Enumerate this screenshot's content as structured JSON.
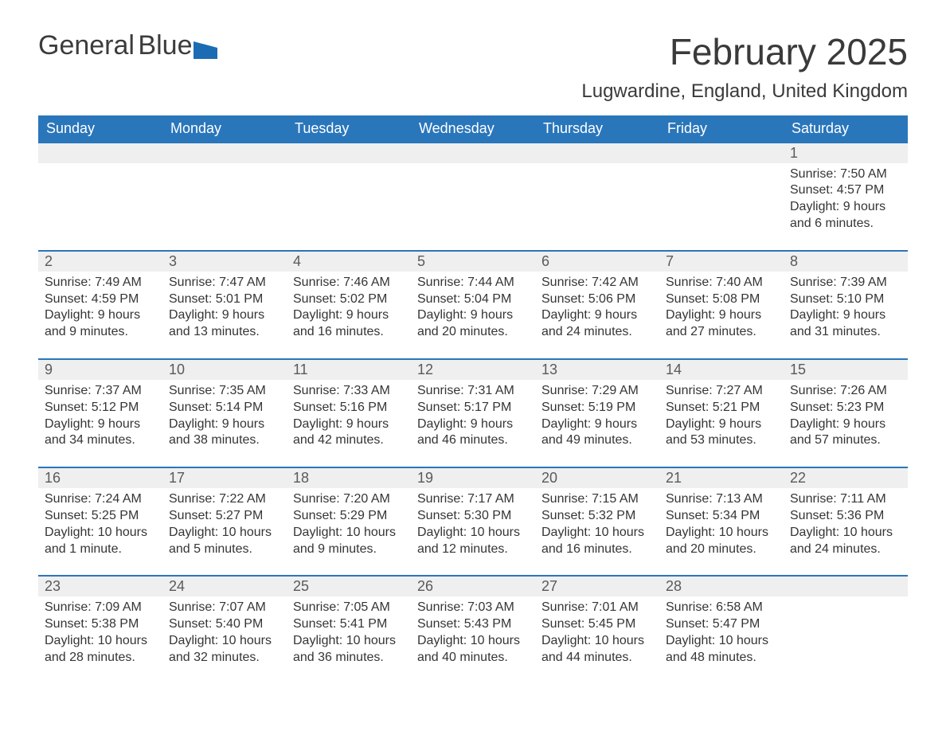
{
  "logo": {
    "word1": "General",
    "word2": "Blue",
    "brand_color": "#1b6cb3"
  },
  "header": {
    "month_title": "February 2025",
    "location": "Lugwardine, England, United Kingdom"
  },
  "calendar": {
    "day_labels": [
      "Sunday",
      "Monday",
      "Tuesday",
      "Wednesday",
      "Thursday",
      "Friday",
      "Saturday"
    ],
    "header_bg": "#2a76bb",
    "header_fg": "#ffffff",
    "daynum_bg": "#efefef",
    "row_divider": "#2a76bb",
    "weeks": [
      [
        null,
        null,
        null,
        null,
        null,
        null,
        {
          "n": "1",
          "sunrise": "Sunrise: 7:50 AM",
          "sunset": "Sunset: 4:57 PM",
          "daylight1": "Daylight: 9 hours",
          "daylight2": "and 6 minutes."
        }
      ],
      [
        {
          "n": "2",
          "sunrise": "Sunrise: 7:49 AM",
          "sunset": "Sunset: 4:59 PM",
          "daylight1": "Daylight: 9 hours",
          "daylight2": "and 9 minutes."
        },
        {
          "n": "3",
          "sunrise": "Sunrise: 7:47 AM",
          "sunset": "Sunset: 5:01 PM",
          "daylight1": "Daylight: 9 hours",
          "daylight2": "and 13 minutes."
        },
        {
          "n": "4",
          "sunrise": "Sunrise: 7:46 AM",
          "sunset": "Sunset: 5:02 PM",
          "daylight1": "Daylight: 9 hours",
          "daylight2": "and 16 minutes."
        },
        {
          "n": "5",
          "sunrise": "Sunrise: 7:44 AM",
          "sunset": "Sunset: 5:04 PM",
          "daylight1": "Daylight: 9 hours",
          "daylight2": "and 20 minutes."
        },
        {
          "n": "6",
          "sunrise": "Sunrise: 7:42 AM",
          "sunset": "Sunset: 5:06 PM",
          "daylight1": "Daylight: 9 hours",
          "daylight2": "and 24 minutes."
        },
        {
          "n": "7",
          "sunrise": "Sunrise: 7:40 AM",
          "sunset": "Sunset: 5:08 PM",
          "daylight1": "Daylight: 9 hours",
          "daylight2": "and 27 minutes."
        },
        {
          "n": "8",
          "sunrise": "Sunrise: 7:39 AM",
          "sunset": "Sunset: 5:10 PM",
          "daylight1": "Daylight: 9 hours",
          "daylight2": "and 31 minutes."
        }
      ],
      [
        {
          "n": "9",
          "sunrise": "Sunrise: 7:37 AM",
          "sunset": "Sunset: 5:12 PM",
          "daylight1": "Daylight: 9 hours",
          "daylight2": "and 34 minutes."
        },
        {
          "n": "10",
          "sunrise": "Sunrise: 7:35 AM",
          "sunset": "Sunset: 5:14 PM",
          "daylight1": "Daylight: 9 hours",
          "daylight2": "and 38 minutes."
        },
        {
          "n": "11",
          "sunrise": "Sunrise: 7:33 AM",
          "sunset": "Sunset: 5:16 PM",
          "daylight1": "Daylight: 9 hours",
          "daylight2": "and 42 minutes."
        },
        {
          "n": "12",
          "sunrise": "Sunrise: 7:31 AM",
          "sunset": "Sunset: 5:17 PM",
          "daylight1": "Daylight: 9 hours",
          "daylight2": "and 46 minutes."
        },
        {
          "n": "13",
          "sunrise": "Sunrise: 7:29 AM",
          "sunset": "Sunset: 5:19 PM",
          "daylight1": "Daylight: 9 hours",
          "daylight2": "and 49 minutes."
        },
        {
          "n": "14",
          "sunrise": "Sunrise: 7:27 AM",
          "sunset": "Sunset: 5:21 PM",
          "daylight1": "Daylight: 9 hours",
          "daylight2": "and 53 minutes."
        },
        {
          "n": "15",
          "sunrise": "Sunrise: 7:26 AM",
          "sunset": "Sunset: 5:23 PM",
          "daylight1": "Daylight: 9 hours",
          "daylight2": "and 57 minutes."
        }
      ],
      [
        {
          "n": "16",
          "sunrise": "Sunrise: 7:24 AM",
          "sunset": "Sunset: 5:25 PM",
          "daylight1": "Daylight: 10 hours",
          "daylight2": "and 1 minute."
        },
        {
          "n": "17",
          "sunrise": "Sunrise: 7:22 AM",
          "sunset": "Sunset: 5:27 PM",
          "daylight1": "Daylight: 10 hours",
          "daylight2": "and 5 minutes."
        },
        {
          "n": "18",
          "sunrise": "Sunrise: 7:20 AM",
          "sunset": "Sunset: 5:29 PM",
          "daylight1": "Daylight: 10 hours",
          "daylight2": "and 9 minutes."
        },
        {
          "n": "19",
          "sunrise": "Sunrise: 7:17 AM",
          "sunset": "Sunset: 5:30 PM",
          "daylight1": "Daylight: 10 hours",
          "daylight2": "and 12 minutes."
        },
        {
          "n": "20",
          "sunrise": "Sunrise: 7:15 AM",
          "sunset": "Sunset: 5:32 PM",
          "daylight1": "Daylight: 10 hours",
          "daylight2": "and 16 minutes."
        },
        {
          "n": "21",
          "sunrise": "Sunrise: 7:13 AM",
          "sunset": "Sunset: 5:34 PM",
          "daylight1": "Daylight: 10 hours",
          "daylight2": "and 20 minutes."
        },
        {
          "n": "22",
          "sunrise": "Sunrise: 7:11 AM",
          "sunset": "Sunset: 5:36 PM",
          "daylight1": "Daylight: 10 hours",
          "daylight2": "and 24 minutes."
        }
      ],
      [
        {
          "n": "23",
          "sunrise": "Sunrise: 7:09 AM",
          "sunset": "Sunset: 5:38 PM",
          "daylight1": "Daylight: 10 hours",
          "daylight2": "and 28 minutes."
        },
        {
          "n": "24",
          "sunrise": "Sunrise: 7:07 AM",
          "sunset": "Sunset: 5:40 PM",
          "daylight1": "Daylight: 10 hours",
          "daylight2": "and 32 minutes."
        },
        {
          "n": "25",
          "sunrise": "Sunrise: 7:05 AM",
          "sunset": "Sunset: 5:41 PM",
          "daylight1": "Daylight: 10 hours",
          "daylight2": "and 36 minutes."
        },
        {
          "n": "26",
          "sunrise": "Sunrise: 7:03 AM",
          "sunset": "Sunset: 5:43 PM",
          "daylight1": "Daylight: 10 hours",
          "daylight2": "and 40 minutes."
        },
        {
          "n": "27",
          "sunrise": "Sunrise: 7:01 AM",
          "sunset": "Sunset: 5:45 PM",
          "daylight1": "Daylight: 10 hours",
          "daylight2": "and 44 minutes."
        },
        {
          "n": "28",
          "sunrise": "Sunrise: 6:58 AM",
          "sunset": "Sunset: 5:47 PM",
          "daylight1": "Daylight: 10 hours",
          "daylight2": "and 48 minutes."
        },
        null
      ]
    ]
  }
}
